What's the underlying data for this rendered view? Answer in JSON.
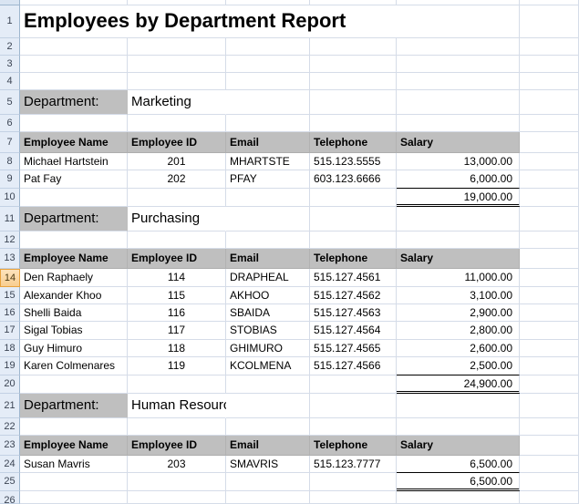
{
  "report": {
    "title": "Employees by Department Report",
    "department_label": "Department:",
    "columns": [
      "Employee Name",
      "Employee ID",
      "Email",
      "Telephone",
      "Salary"
    ],
    "sections": [
      {
        "department": "Marketing",
        "employees": [
          {
            "name": "Michael Hartstein",
            "id": "201",
            "email": "MHARTSTE",
            "telephone": "515.123.5555",
            "salary": "13,000.00"
          },
          {
            "name": "Pat Fay",
            "id": "202",
            "email": "PFAY",
            "telephone": "603.123.6666",
            "salary": "6,000.00"
          }
        ],
        "total": "19,000.00"
      },
      {
        "department": "Purchasing",
        "employees": [
          {
            "name": "Den Raphaely",
            "id": "114",
            "email": "DRAPHEAL",
            "telephone": "515.127.4561",
            "salary": "11,000.00"
          },
          {
            "name": "Alexander Khoo",
            "id": "115",
            "email": "AKHOO",
            "telephone": "515.127.4562",
            "salary": "3,100.00"
          },
          {
            "name": "Shelli Baida",
            "id": "116",
            "email": "SBAIDA",
            "telephone": "515.127.4563",
            "salary": "2,900.00"
          },
          {
            "name": "Sigal Tobias",
            "id": "117",
            "email": "STOBIAS",
            "telephone": "515.127.4564",
            "salary": "2,800.00"
          },
          {
            "name": "Guy Himuro",
            "id": "118",
            "email": "GHIMURO",
            "telephone": "515.127.4565",
            "salary": "2,600.00"
          },
          {
            "name": "Karen Colmenares",
            "id": "119",
            "email": "KCOLMENA",
            "telephone": "515.127.4566",
            "salary": "2,500.00"
          }
        ],
        "total": "24,900.00"
      },
      {
        "department": "Human Resources",
        "employees": [
          {
            "name": "Susan Mavris",
            "id": "203",
            "email": "SMAVRIS",
            "telephone": "515.123.7777",
            "salary": "6,500.00"
          }
        ],
        "total": "6,500.00"
      }
    ]
  },
  "grid": {
    "visible_row_numbers": [
      "1",
      "2",
      "3",
      "4",
      "5",
      "6",
      "7",
      "8",
      "9",
      "10",
      "11",
      "12",
      "13",
      "14",
      "15",
      "16",
      "17",
      "18",
      "19",
      "20",
      "21",
      "22",
      "23",
      "24",
      "25",
      "26"
    ],
    "selected_row_number": "14"
  },
  "colors": {
    "header_fill": "#BFBFBF",
    "gridline": "#D5DCE8",
    "row_gutter_fill": "#E4ECF7",
    "row_gutter_border": "#9EB6CE",
    "selected_row_fill": "#FBD7A2",
    "selected_row_border": "#E8A23D"
  }
}
